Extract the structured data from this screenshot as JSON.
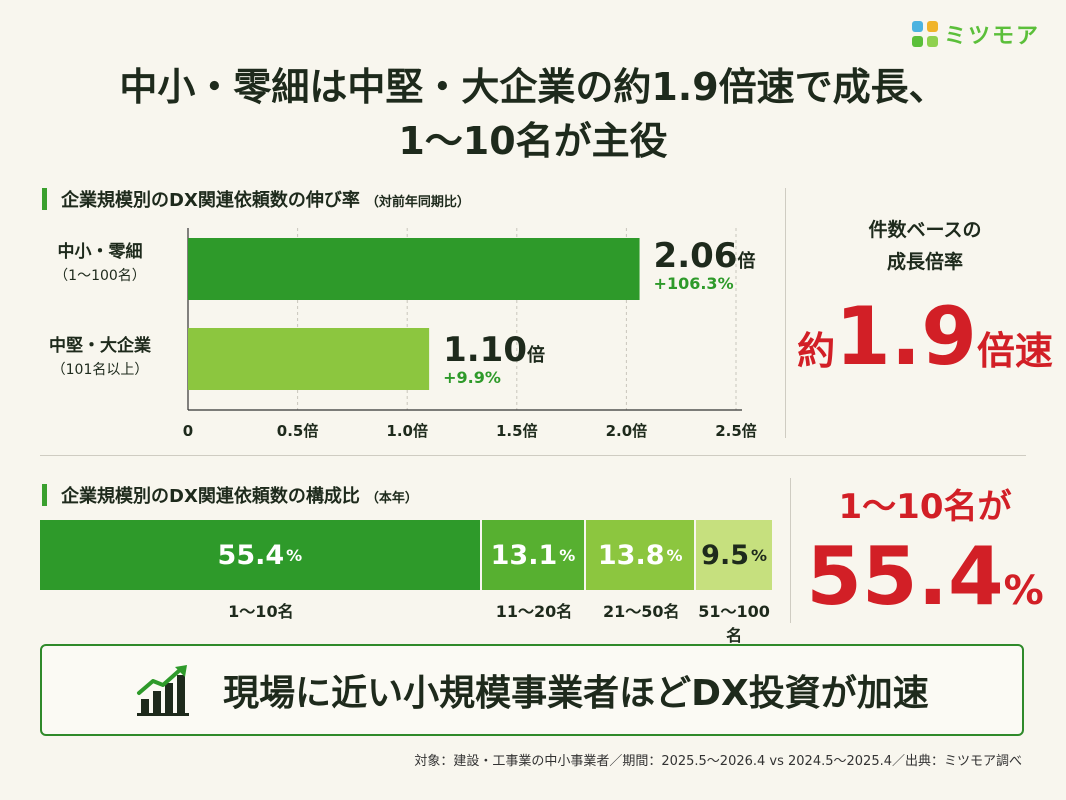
{
  "brand": {
    "name": "ミツモア",
    "colors": [
      "#4cb3e0",
      "#f0b42a",
      "#5bbf3a",
      "#8fd14f"
    ]
  },
  "title": {
    "line1": "中小・零細は中堅・大企業の約1.9倍速で成長、",
    "line2": "1〜10名が主役"
  },
  "growth_section": {
    "heading": "企業規模別のDX関連依頼数の伸び率",
    "subheading": "（対前年同期比）"
  },
  "composition_section": {
    "heading": "企業規模別のDX関連依頼数の構成比",
    "subheading": "（本年）"
  },
  "callout_growth": {
    "line1": "件数ベースの",
    "line2": "成長倍率",
    "prefix": "約",
    "value": "1.9",
    "suffix": "倍速"
  },
  "callout_share": {
    "line1": "1〜10名が",
    "value": "55.4",
    "unit": "%"
  },
  "banner": {
    "text": "現場に近い小規模事業者ほどDX投資が加速",
    "icon": "growth-bar-chart-icon"
  },
  "footnote": "対象：建設・工事業の中小事業者／期間：2025.5〜2026.4 vs 2024.5〜2025.4／出典：ミツモア調べ",
  "chart_data": [
    {
      "type": "bar",
      "orientation": "horizontal",
      "title": "企業規模別のDX関連依頼数の伸び率（対前年同期比）",
      "categories": [
        {
          "label": "中小・零細",
          "sub": "（1〜100名）"
        },
        {
          "label": "中堅・大企業",
          "sub": "（101名以上）"
        }
      ],
      "values": [
        2.06,
        1.1
      ],
      "value_labels": [
        "2.06",
        "1.10"
      ],
      "value_unit": "倍",
      "growth_labels": [
        "+106.3%",
        "+9.9%"
      ],
      "bar_colors": [
        "#2e9a2a",
        "#8cc63f"
      ],
      "xlim": [
        0,
        2.5
      ],
      "ticks": [
        {
          "value": 0,
          "label": "0"
        },
        {
          "value": 0.5,
          "label": "0.5倍"
        },
        {
          "value": 1.0,
          "label": "1.0倍"
        },
        {
          "value": 1.5,
          "label": "1.5倍"
        },
        {
          "value": 2.0,
          "label": "2.0倍"
        },
        {
          "value": 2.5,
          "label": "2.5倍"
        }
      ],
      "grid": true
    },
    {
      "type": "bar",
      "orientation": "stacked-horizontal",
      "title": "企業規模別のDX関連依頼数の構成比（本年）",
      "categories": [
        "1〜10名",
        "11〜20名",
        "21〜50名",
        "51〜100名"
      ],
      "values": [
        55.4,
        13.1,
        13.8,
        9.5
      ],
      "value_labels": [
        "55.4",
        "13.1",
        "13.8",
        "9.5"
      ],
      "unit": "%",
      "colors": [
        "#2e9a2a",
        "#57b030",
        "#8cc63f",
        "#c6e07e"
      ],
      "text_colors": [
        "#ffffff",
        "#ffffff",
        "#ffffff",
        "#1e2a1c"
      ]
    }
  ]
}
